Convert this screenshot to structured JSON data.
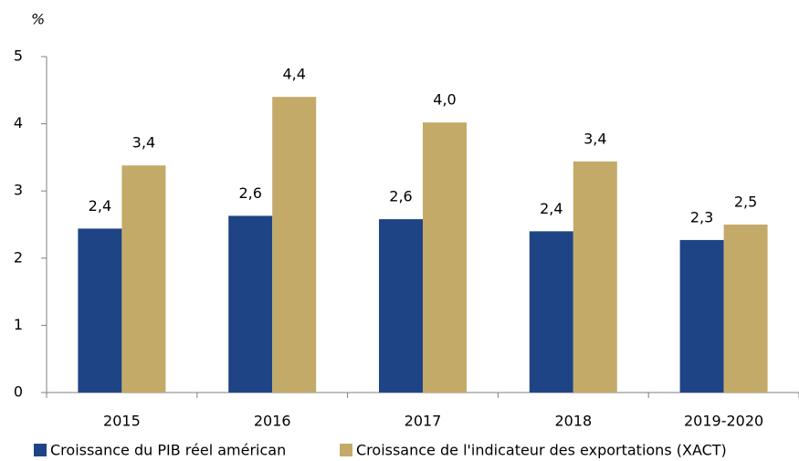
{
  "chart_data": {
    "type": "bar",
    "unit_label": "%",
    "categories": [
      "2015",
      "2016",
      "2017",
      "2018",
      "2019-2020"
    ],
    "series": [
      {
        "name": "Croissance du PIB réel américan",
        "color": "#1f4485",
        "values": [
          2.44,
          2.63,
          2.58,
          2.4,
          2.27
        ],
        "value_labels": [
          "2,4",
          "2,6",
          "2,6",
          "2,4",
          "2,3"
        ]
      },
      {
        "name": "Croissance de l'indicateur des exportations (XACT)",
        "color": "#c4aa69",
        "values": [
          3.38,
          4.4,
          4.02,
          3.44,
          2.5
        ],
        "value_labels": [
          "3,4",
          "4,4",
          "4,0",
          "3,4",
          "2,5"
        ]
      }
    ],
    "ylim": [
      0,
      5
    ],
    "yticks": [
      0,
      1,
      2,
      3,
      4,
      5
    ],
    "grid": false,
    "legend": "bottom"
  }
}
